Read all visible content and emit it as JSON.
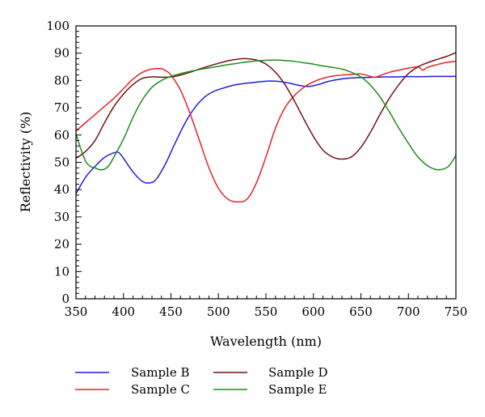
{
  "chart_data": {
    "type": "line",
    "title": "",
    "xlabel": "Wavelength (nm)",
    "ylabel": "Reflectivity (%)",
    "xlim": [
      350,
      750
    ],
    "ylim": [
      0,
      100
    ],
    "xticks": [
      350,
      400,
      450,
      500,
      550,
      600,
      650,
      700,
      750
    ],
    "yticks": [
      0,
      10,
      20,
      30,
      40,
      50,
      60,
      70,
      80,
      90,
      100
    ],
    "grid": false,
    "legend_position": "bottom",
    "series": [
      {
        "name": "Sample B",
        "color": "#1f1fd6",
        "x": [
          350,
          360,
          370,
          380,
          390,
          395,
          400,
          410,
          420,
          428,
          435,
          445,
          455,
          465,
          475,
          485,
          495,
          505,
          515,
          525,
          535,
          545,
          555,
          565,
          575,
          585,
          595,
          605,
          615,
          625,
          635,
          645,
          655,
          665,
          675,
          685,
          695,
          705,
          715,
          725,
          735,
          750
        ],
        "y": [
          38.5,
          44.5,
          48.5,
          51.8,
          53.5,
          53.6,
          51.5,
          46.5,
          43.0,
          42.5,
          44.0,
          50.0,
          57.5,
          64.5,
          70.0,
          73.8,
          76.0,
          77.2,
          78.2,
          78.8,
          79.2,
          79.6,
          79.8,
          79.6,
          79.0,
          78.2,
          77.8,
          78.5,
          79.6,
          80.3,
          80.8,
          81.0,
          81.1,
          81.2,
          81.3,
          81.3,
          81.4,
          81.4,
          81.4,
          81.5,
          81.5,
          81.5
        ]
      },
      {
        "name": "Sample C",
        "color": "#e8212b",
        "x": [
          350,
          360,
          370,
          380,
          390,
          400,
          410,
          420,
          430,
          440,
          445,
          450,
          460,
          470,
          480,
          490,
          500,
          510,
          520,
          530,
          540,
          550,
          560,
          570,
          580,
          590,
          600,
          610,
          620,
          630,
          640,
          650,
          660,
          665,
          670,
          680,
          690,
          700,
          710,
          715,
          720,
          730,
          740,
          750
        ],
        "y": [
          61.5,
          64.5,
          67.5,
          70.5,
          73.5,
          77.0,
          80.5,
          83.0,
          84.2,
          84.3,
          83.5,
          82.0,
          76.5,
          68.0,
          58.0,
          48.0,
          40.5,
          36.5,
          35.5,
          36.5,
          42.5,
          52.0,
          62.5,
          70.0,
          74.5,
          77.5,
          79.5,
          80.8,
          81.6,
          82.0,
          82.2,
          82.4,
          81.5,
          81.2,
          81.8,
          83.0,
          83.8,
          84.5,
          85.0,
          83.8,
          84.8,
          85.8,
          86.6,
          87.0
        ]
      },
      {
        "name": "Sample D",
        "color": "#701414",
        "x": [
          350,
          360,
          370,
          380,
          390,
          400,
          410,
          420,
          430,
          440,
          450,
          460,
          470,
          480,
          490,
          500,
          510,
          520,
          530,
          540,
          550,
          560,
          570,
          580,
          590,
          600,
          610,
          620,
          630,
          640,
          650,
          660,
          670,
          680,
          690,
          700,
          710,
          720,
          730,
          740,
          750
        ],
        "y": [
          51.5,
          54.0,
          58.0,
          64.5,
          70.5,
          75.0,
          78.5,
          80.8,
          81.3,
          81.2,
          81.3,
          82.0,
          83.0,
          84.2,
          85.3,
          86.3,
          87.2,
          87.8,
          88.0,
          87.5,
          86.0,
          83.0,
          78.5,
          72.5,
          65.8,
          59.5,
          54.5,
          52.0,
          51.2,
          52.0,
          55.5,
          61.0,
          67.5,
          73.5,
          78.5,
          82.5,
          85.0,
          86.5,
          87.7,
          88.8,
          90.2
        ]
      },
      {
        "name": "Sample E",
        "color": "#1e8c1e",
        "x": [
          350,
          355,
          360,
          365,
          370,
          375,
          380,
          385,
          390,
          400,
          410,
          420,
          430,
          440,
          450,
          460,
          470,
          480,
          490,
          500,
          510,
          520,
          530,
          540,
          550,
          560,
          570,
          580,
          590,
          600,
          610,
          620,
          630,
          640,
          650,
          660,
          670,
          680,
          690,
          700,
          710,
          720,
          730,
          740,
          745,
          750
        ],
        "y": [
          60.5,
          55.0,
          50.5,
          48.5,
          48.0,
          47.3,
          47.5,
          49.0,
          52.0,
          58.5,
          66.5,
          73.0,
          77.5,
          80.0,
          81.5,
          82.5,
          83.3,
          84.0,
          84.6,
          85.2,
          85.8,
          86.3,
          86.8,
          87.2,
          87.4,
          87.5,
          87.3,
          87.0,
          86.5,
          86.0,
          85.3,
          84.8,
          84.2,
          83.0,
          81.3,
          78.3,
          74.0,
          68.5,
          62.5,
          57.0,
          52.0,
          48.8,
          47.3,
          48.0,
          49.8,
          52.5
        ]
      }
    ]
  },
  "legend": [
    {
      "label": "Sample B",
      "color": "#1f1fd6"
    },
    {
      "label": "Sample C",
      "color": "#e8212b"
    },
    {
      "label": "Sample D",
      "color": "#701414"
    },
    {
      "label": "Sample E",
      "color": "#1e8c1e"
    }
  ]
}
